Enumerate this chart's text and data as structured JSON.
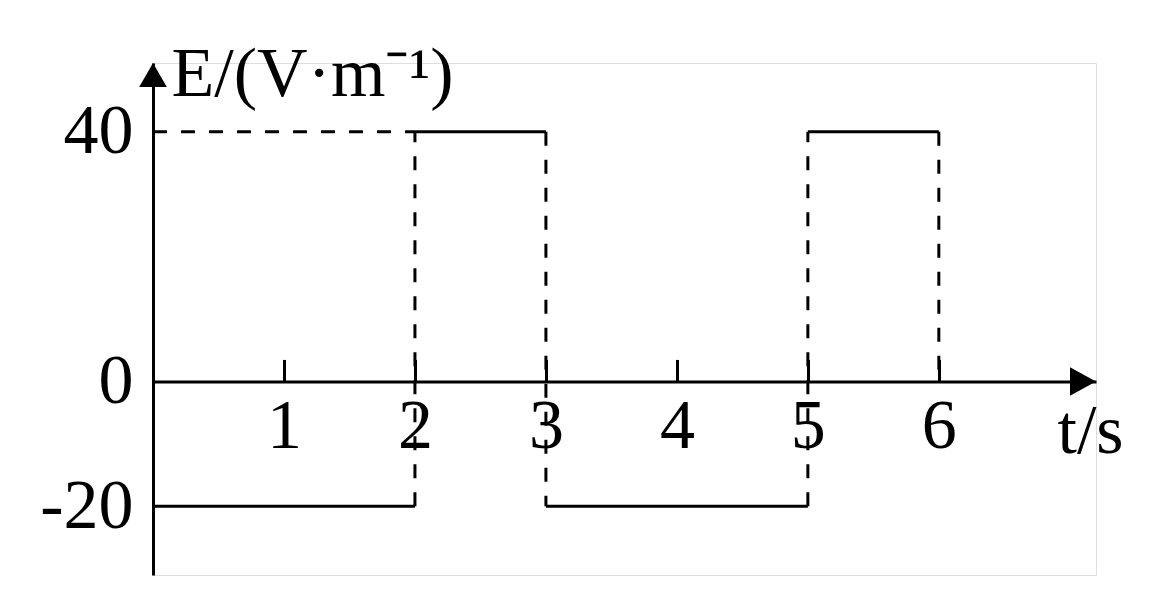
{
  "chart_data": {
    "type": "step",
    "xlabel": "t/s",
    "ylabel": "E/(V·m⁻¹)",
    "xlim": [
      0,
      7.2
    ],
    "ylim": [
      -31,
      51
    ],
    "xticks": [
      1,
      2,
      3,
      4,
      5,
      6
    ],
    "yticks": [
      -20,
      0,
      40
    ],
    "series": [
      {
        "color": "#000000",
        "line_style": "solid",
        "x": [
          0,
          2,
          3,
          5,
          6
        ],
        "values": [
          -20,
          40,
          -20,
          40,
          0
        ]
      },
      {
        "type": "line",
        "color": "#000000",
        "line_style": "dashed",
        "x": [
          0,
          2
        ],
        "values": [
          40,
          40
        ]
      }
    ]
  }
}
